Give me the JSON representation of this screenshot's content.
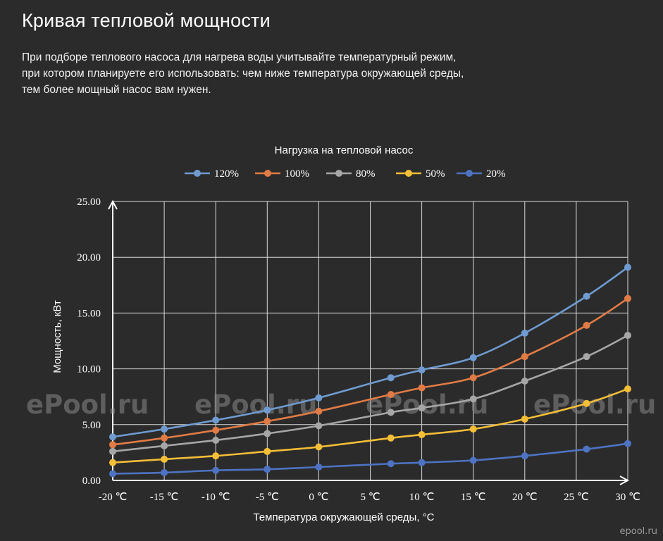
{
  "page": {
    "title": "Кривая тепловой мощности",
    "description_lines": [
      "При подборе теплового насоса для нагрева воды учитывайте температурный режим,",
      "при котором планируете его использовать: чем ниже температура окружающей среды,",
      "тем более мощный насос вам нужен."
    ],
    "watermark": "ePool.ru",
    "corner_watermark": "epool.ru"
  },
  "colors": {
    "background": "#2b2b2b",
    "grid": "#d9d9d9",
    "text": "#ffffff"
  },
  "chart_data": {
    "type": "line",
    "title": "Нагрузка на тепловой насос",
    "xlabel": "Температура окружающей среды, °C",
    "ylabel": "Мощность, кВт",
    "categories": [
      "-20 ℃",
      "-15 ℃",
      "-10 ℃",
      "-5 ℃",
      "0 ℃",
      "5 ℃",
      "10 ℃",
      "15 ℃",
      "20 ℃",
      "25 ℃",
      "30 ℃"
    ],
    "x": [
      -20,
      -15,
      -10,
      -5,
      0,
      5,
      10,
      15,
      20,
      25,
      30
    ],
    "yticks": [
      "0.00",
      "5.00",
      "10.00",
      "15.00",
      "20.00",
      "25.00"
    ],
    "ylim": [
      0,
      25
    ],
    "xlim": [
      -20,
      30
    ],
    "grid": true,
    "legend_position": "top",
    "series": [
      {
        "name": "120%",
        "color": "#6f9bd0",
        "points": [
          [
            -20,
            3.9
          ],
          [
            -15,
            4.6
          ],
          [
            -10,
            5.4
          ],
          [
            -5,
            6.3
          ],
          [
            0,
            7.4
          ],
          [
            7,
            9.2
          ],
          [
            10,
            9.9
          ],
          [
            15,
            11.0
          ],
          [
            20,
            13.2
          ],
          [
            26,
            16.5
          ],
          [
            30,
            19.1
          ]
        ]
      },
      {
        "name": "100%",
        "color": "#e07b45",
        "points": [
          [
            -20,
            3.2
          ],
          [
            -15,
            3.8
          ],
          [
            -10,
            4.5
          ],
          [
            -5,
            5.3
          ],
          [
            0,
            6.2
          ],
          [
            7,
            7.7
          ],
          [
            10,
            8.3
          ],
          [
            15,
            9.2
          ],
          [
            20,
            11.1
          ],
          [
            26,
            13.9
          ],
          [
            30,
            16.3
          ]
        ]
      },
      {
        "name": "80%",
        "color": "#a6a6a6",
        "points": [
          [
            -20,
            2.6
          ],
          [
            -15,
            3.1
          ],
          [
            -10,
            3.6
          ],
          [
            -5,
            4.2
          ],
          [
            0,
            4.9
          ],
          [
            7,
            6.1
          ],
          [
            10,
            6.5
          ],
          [
            15,
            7.3
          ],
          [
            20,
            8.9
          ],
          [
            26,
            11.1
          ],
          [
            30,
            13.0
          ]
        ]
      },
      {
        "name": "50%",
        "color": "#f5be37",
        "points": [
          [
            -20,
            1.6
          ],
          [
            -15,
            1.9
          ],
          [
            -10,
            2.2
          ],
          [
            -5,
            2.6
          ],
          [
            0,
            3.0
          ],
          [
            7,
            3.8
          ],
          [
            10,
            4.1
          ],
          [
            15,
            4.6
          ],
          [
            20,
            5.5
          ],
          [
            26,
            6.9
          ],
          [
            30,
            8.2
          ]
        ]
      },
      {
        "name": "20%",
        "color": "#4d73c2",
        "points": [
          [
            -20,
            0.6
          ],
          [
            -15,
            0.7
          ],
          [
            -10,
            0.9
          ],
          [
            -5,
            1.0
          ],
          [
            0,
            1.2
          ],
          [
            7,
            1.5
          ],
          [
            10,
            1.6
          ],
          [
            15,
            1.8
          ],
          [
            20,
            2.2
          ],
          [
            26,
            2.8
          ],
          [
            30,
            3.3
          ]
        ]
      }
    ]
  }
}
